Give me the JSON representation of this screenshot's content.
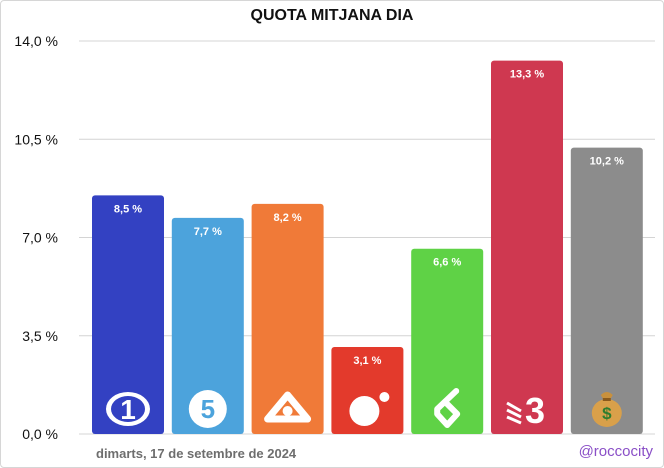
{
  "title": "QUOTA MITJANA DIA",
  "footer": {
    "date": "dimarts, 17 de setembre de 2024",
    "credit": "@roccocity"
  },
  "chart_data": {
    "type": "bar",
    "title": "QUOTA MITJANA DIA",
    "xlabel": "",
    "ylabel": "",
    "ylim": [
      0,
      14
    ],
    "yticks": [
      0,
      3.5,
      7,
      10.5,
      14
    ],
    "ytick_labels": [
      "0,0 %",
      "3,5 %",
      "7,0 %",
      "10,5 %",
      "14,0 %"
    ],
    "grid": true,
    "categories": [
      "la1-logo",
      "telecinco-logo",
      "antena3-logo",
      "cuatro-logo",
      "lasexta-logo",
      "tv3-logo",
      "money-bag-icon"
    ],
    "values": [
      8.5,
      7.7,
      8.2,
      3.1,
      6.6,
      13.3,
      10.2
    ],
    "value_labels": [
      "8,5 %",
      "7,7 %",
      "8,2 %",
      "3,1 %",
      "6,6 %",
      "13,3 %",
      "10,2 %"
    ],
    "colors": [
      "#3341c2",
      "#4ca3dc",
      "#f07a38",
      "#e33a2c",
      "#5fd246",
      "#cf3850",
      "#8c8c8c"
    ]
  }
}
